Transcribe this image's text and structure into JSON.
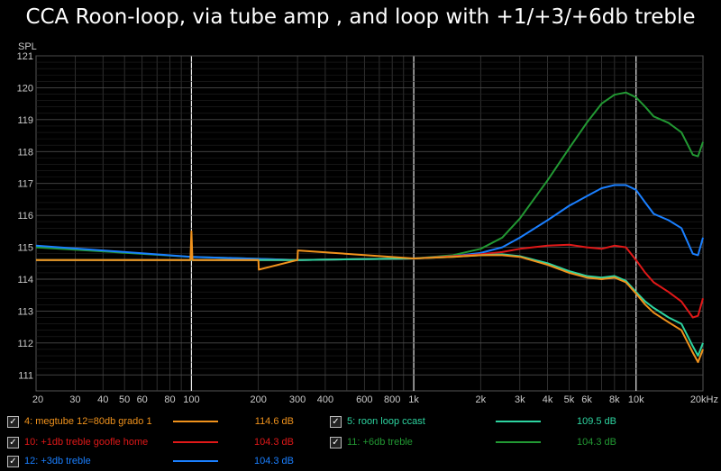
{
  "chart_data": {
    "type": "line",
    "title": "CCA Roon-loop, via tube amp , and loop with +1/+3/+6db treble",
    "ylabel": "SPL",
    "xlabel": "",
    "xscale": "log",
    "xlim": [
      20,
      20000
    ],
    "ylim": [
      110.5,
      121
    ],
    "grid": true,
    "x_ticks": [
      20,
      30,
      40,
      50,
      60,
      80,
      100,
      200,
      300,
      400,
      600,
      800,
      1000,
      2000,
      3000,
      4000,
      5000,
      6000,
      8000,
      10000,
      20000
    ],
    "x_tick_labels": [
      "20",
      "30",
      "40",
      "50",
      "60",
      "80",
      "100",
      "200",
      "300",
      "400",
      "600",
      "800",
      "1k",
      "2k",
      "3k",
      "4k",
      "5k",
      "6k",
      "8k",
      "10k",
      "20kHz"
    ],
    "y_ticks": [
      111,
      112,
      113,
      114,
      115,
      116,
      117,
      118,
      119,
      120,
      121
    ],
    "series": [
      {
        "name": "11: +6db treble",
        "color": "#229933",
        "value": "104.3 dB",
        "x": [
          20,
          100,
          300,
          1000,
          1500,
          2000,
          2500,
          3000,
          4000,
          5000,
          6000,
          7000,
          8000,
          9000,
          10000,
          11000,
          12000,
          14000,
          16000,
          18000,
          19000,
          20000
        ],
        "y": [
          115.0,
          114.7,
          114.6,
          114.65,
          114.75,
          114.95,
          115.3,
          115.9,
          117.1,
          118.1,
          118.9,
          119.5,
          119.78,
          119.85,
          119.7,
          119.4,
          119.1,
          118.9,
          118.6,
          117.9,
          117.85,
          118.3
        ]
      },
      {
        "name": "12: +3db treble",
        "color": "#1a7fff",
        "value": "104.3 dB",
        "x": [
          20,
          100,
          300,
          1000,
          1500,
          2000,
          2500,
          3000,
          4000,
          5000,
          6000,
          7000,
          8000,
          9000,
          10000,
          11000,
          12000,
          14000,
          16000,
          18000,
          19000,
          20000
        ],
        "y": [
          115.05,
          114.7,
          114.6,
          114.65,
          114.72,
          114.82,
          115.0,
          115.3,
          115.85,
          116.3,
          116.6,
          116.85,
          116.95,
          116.95,
          116.8,
          116.4,
          116.05,
          115.85,
          115.6,
          114.8,
          114.75,
          115.3
        ]
      },
      {
        "name": "10: +1db treble goofle home",
        "color": "#e01818",
        "value": "104.3 dB",
        "x": [
          20,
          100,
          300,
          1000,
          1500,
          2000,
          2500,
          3000,
          4000,
          5000,
          6000,
          7000,
          8000,
          9000,
          10000,
          11000,
          12000,
          14000,
          16000,
          18000,
          19000,
          20000
        ],
        "y": [
          114.6,
          114.6,
          114.6,
          114.65,
          114.72,
          114.78,
          114.85,
          114.95,
          115.05,
          115.08,
          115.0,
          114.95,
          115.05,
          115.0,
          114.6,
          114.2,
          113.9,
          113.6,
          113.3,
          112.8,
          112.85,
          113.4
        ]
      },
      {
        "name": "5: roon loop ccast",
        "color": "#2dd4a0",
        "value": "109.5 dB",
        "x": [
          20,
          100,
          300,
          1000,
          1500,
          2000,
          2500,
          3000,
          4000,
          5000,
          6000,
          7000,
          8000,
          9000,
          10000,
          11000,
          12000,
          14000,
          16000,
          18000,
          19000,
          20000
        ],
        "y": [
          114.6,
          114.6,
          114.6,
          114.65,
          114.7,
          114.75,
          114.78,
          114.72,
          114.5,
          114.25,
          114.1,
          114.05,
          114.1,
          113.95,
          113.6,
          113.3,
          113.1,
          112.8,
          112.6,
          111.9,
          111.6,
          112.0
        ]
      },
      {
        "name": "4: megtube 12=80db grado 1",
        "color": "#f0921c",
        "value": "114.6 dB",
        "x": [
          20,
          60,
          99,
          100,
          101,
          200,
          201,
          300,
          301,
          1000,
          1500,
          2000,
          2500,
          3000,
          4000,
          5000,
          6000,
          7000,
          8000,
          9000,
          10000,
          11000,
          12000,
          14000,
          16000,
          18000,
          19000,
          20000
        ],
        "y": [
          114.6,
          114.6,
          114.6,
          115.5,
          114.6,
          114.6,
          114.3,
          114.6,
          114.9,
          114.65,
          114.7,
          114.75,
          114.75,
          114.7,
          114.45,
          114.2,
          114.05,
          114.0,
          114.05,
          113.9,
          113.55,
          113.2,
          112.95,
          112.65,
          112.4,
          111.7,
          111.4,
          111.8
        ]
      }
    ]
  },
  "legend": [
    {
      "label": "4: megtube 12=80db grado 1",
      "color": "#f0921c",
      "value": "114.6 dB",
      "checked": "✓"
    },
    {
      "label": "5: roon loop ccast",
      "color": "#2dd4a0",
      "value": "109.5 dB",
      "checked": "✓"
    },
    {
      "label": "10: +1db treble goofle home",
      "color": "#e01818",
      "value": "104.3 dB",
      "checked": "✓"
    },
    {
      "label": "11: +6db treble",
      "color": "#229933",
      "value": "104.3 dB",
      "checked": "✓"
    },
    {
      "label": "12: +3db treble",
      "color": "#1a7fff",
      "value": "104.3 dB",
      "checked": "✓"
    }
  ]
}
